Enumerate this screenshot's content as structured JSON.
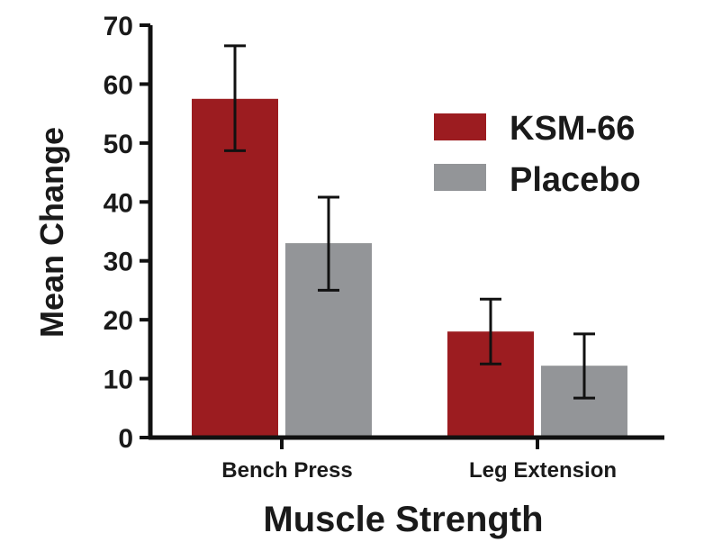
{
  "chart_data": {
    "type": "bar",
    "title": "",
    "xlabel": "Muscle Strength",
    "ylabel": "Mean Change",
    "ylim": [
      0,
      70
    ],
    "yticks": [
      0,
      10,
      20,
      30,
      40,
      50,
      60,
      70
    ],
    "categories": [
      "Bench Press",
      "Leg Extension"
    ],
    "legend_position": "top-right",
    "grid": false,
    "series": [
      {
        "name": "KSM-66",
        "color": "#9c1c20",
        "values": [
          57.5,
          18.0
        ],
        "error_low": [
          48.7,
          12.5
        ],
        "error_high": [
          66.5,
          23.5
        ]
      },
      {
        "name": "Placebo",
        "color": "#939598",
        "values": [
          33.0,
          12.2
        ],
        "error_low": [
          25.0,
          6.7
        ],
        "error_high": [
          40.8,
          17.6
        ]
      }
    ]
  }
}
